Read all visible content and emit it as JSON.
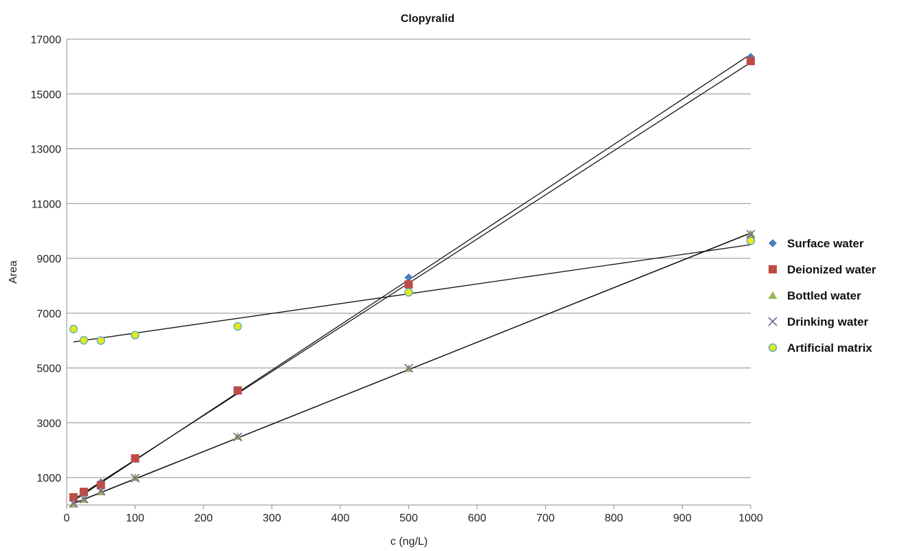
{
  "chart_data": {
    "type": "scatter",
    "title": "Clopyralid",
    "xlabel": "c (ng/L)",
    "ylabel": "Area",
    "xlim": [
      0,
      1000
    ],
    "ylim": [
      0,
      17000
    ],
    "xticks": [
      0,
      100,
      200,
      300,
      400,
      500,
      600,
      700,
      800,
      900,
      1000
    ],
    "yticks": [
      1000,
      3000,
      5000,
      7000,
      9000,
      11000,
      13000,
      15000,
      17000
    ],
    "grid": "horizontal",
    "legend_position": "right",
    "series": [
      {
        "name": "Surface water",
        "marker": "diamond",
        "color": "#4a7ebb",
        "x": [
          10,
          25,
          50,
          100,
          250,
          500,
          1000
        ],
        "y": [
          180,
          420,
          820,
          1680,
          4150,
          8300,
          16350
        ],
        "trendline": [
          [
            10,
            150
          ],
          [
            1000,
            16450
          ]
        ]
      },
      {
        "name": "Deionized water",
        "marker": "square",
        "color": "#be4b48",
        "x": [
          10,
          25,
          50,
          100,
          250,
          500,
          1000
        ],
        "y": [
          280,
          480,
          720,
          1700,
          4180,
          8050,
          16200
        ],
        "trendline": [
          [
            10,
            200
          ],
          [
            1000,
            16150
          ]
        ]
      },
      {
        "name": "Bottled water",
        "marker": "triangle",
        "color": "#98b954",
        "x": [
          10,
          25,
          50,
          100,
          250,
          500,
          1000
        ],
        "y": [
          30,
          200,
          480,
          1000,
          2500,
          4980,
          9900
        ],
        "trendline": [
          [
            10,
            50
          ],
          [
            1000,
            9930
          ]
        ]
      },
      {
        "name": "Drinking water",
        "marker": "x",
        "color": "#7d60a0",
        "x": [
          10,
          25,
          50,
          100,
          250,
          500,
          1000
        ],
        "y": [
          60,
          220,
          510,
          980,
          2480,
          4990,
          9880
        ],
        "trendline": [
          [
            10,
            60
          ],
          [
            1000,
            9920
          ]
        ]
      },
      {
        "name": "Artificial matrix",
        "marker": "circle",
        "color": "#e8e820",
        "stroke": "#46aac5",
        "x": [
          10,
          25,
          50,
          100,
          250,
          500,
          1000
        ],
        "y": [
          6420,
          6010,
          6000,
          6200,
          6520,
          7760,
          9640
        ],
        "trendline": [
          [
            10,
            5950
          ],
          [
            1000,
            9500
          ]
        ]
      }
    ]
  }
}
